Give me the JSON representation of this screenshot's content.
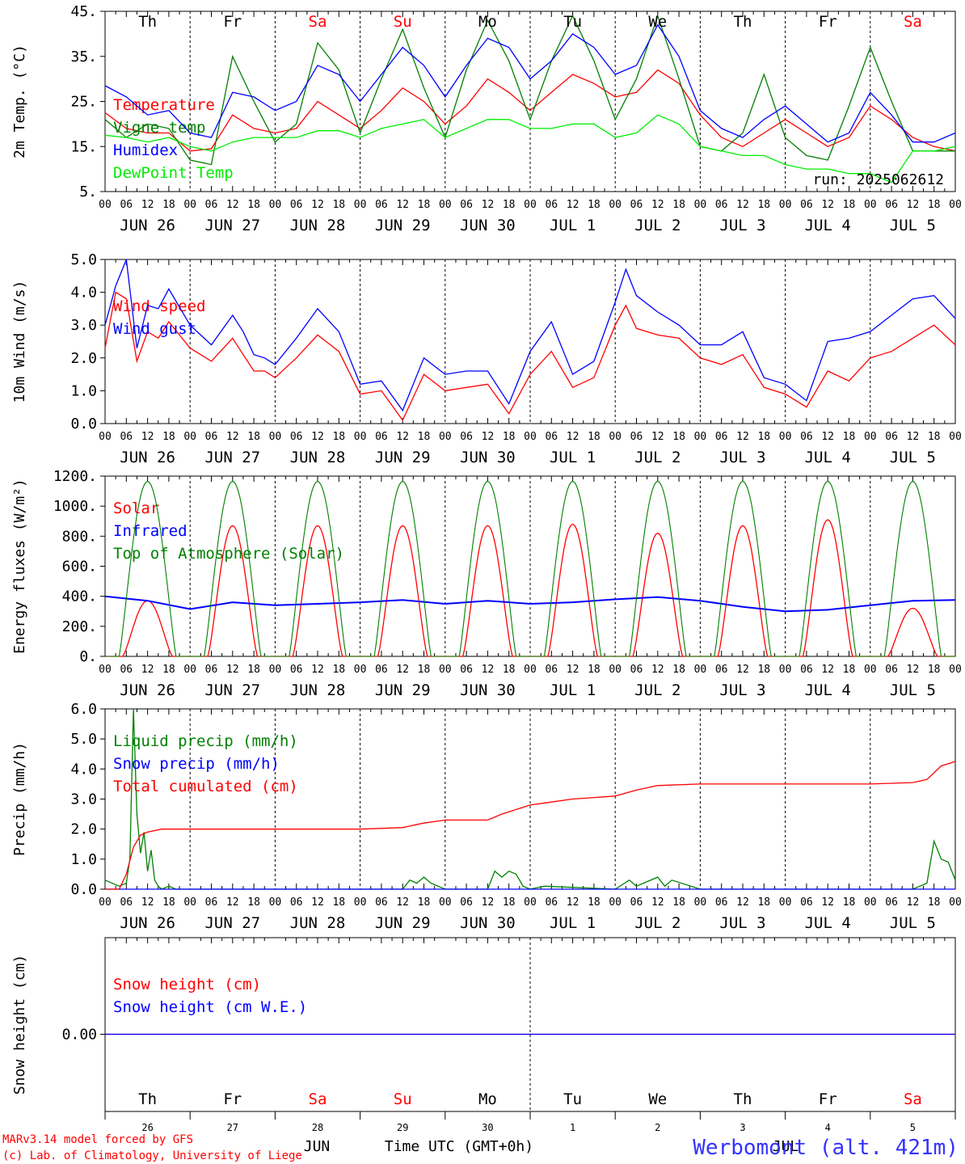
{
  "header": {
    "run_label": "run: 2025062612",
    "credit_line1": "MARv3.14 model forced by GFS",
    "credit_line2": "(c) Lab. of Climatology, University of Liege",
    "station": "Werbomont (alt. 421m)",
    "bottom_month_left": "JUN",
    "bottom_month_right": "JUL",
    "time_axis_label": "Time UTC (GMT+0h)"
  },
  "axis": {
    "hour_ticks": [
      "00",
      "06",
      "12",
      "18"
    ],
    "end_tick": "00",
    "day_labels": [
      "JUN 26",
      "JUN 27",
      "JUN 28",
      "JUN 29",
      "JUN 30",
      "JUL  1",
      "JUL  2",
      "JUL  3",
      "JUL  4",
      "JUL  5"
    ],
    "weekday_labels": [
      "Th",
      "Fr",
      "Sa",
      "Su",
      "Mo",
      "Tu",
      "We",
      "Th",
      "Fr",
      "Sa"
    ],
    "weekend_flags": [
      false,
      false,
      true,
      true,
      false,
      false,
      false,
      false,
      false,
      true
    ],
    "day_numbers": [
      "26",
      "27",
      "28",
      "29",
      "30",
      "1",
      "2",
      "3",
      "4",
      "5"
    ],
    "x_unit": "hours since 2025-06-26 00 UTC",
    "x_range": [
      0,
      240
    ]
  },
  "colors": {
    "red": "#ff0000",
    "green": "#008000",
    "blue": "#0000ff",
    "lightgreen": "#00ee00",
    "weekend": "#ff0000",
    "axis": "#000000",
    "station": "#3333ff"
  },
  "chart_data": [
    {
      "id": "temperature",
      "type": "line",
      "ylabel": "2m Temp. (°C)",
      "yticks": [
        5,
        15,
        25,
        35,
        45
      ],
      "ytick_labels": [
        "5.",
        "15.",
        "25.",
        "35.",
        "45."
      ],
      "ylim": [
        5,
        45
      ],
      "series": [
        {
          "name": "Temperature",
          "color": "red",
          "x": [
            0,
            6,
            12,
            18,
            24,
            30,
            36,
            42,
            48,
            54,
            60,
            66,
            72,
            78,
            84,
            90,
            96,
            102,
            108,
            114,
            120,
            126,
            132,
            138,
            144,
            150,
            156,
            162,
            168,
            174,
            180,
            186,
            192,
            198,
            204,
            210,
            216,
            222,
            228,
            234,
            240
          ],
          "values": [
            22.5,
            19,
            18,
            18,
            14,
            14.5,
            22,
            19,
            18,
            19,
            25,
            22,
            19,
            23,
            28,
            25,
            20,
            24,
            30,
            27,
            23,
            27,
            31,
            29,
            26,
            27,
            32,
            29,
            22,
            17,
            15,
            18,
            21,
            18,
            15,
            17,
            24,
            21,
            17,
            15,
            14
          ]
        },
        {
          "name": "Vigne temp",
          "color": "green",
          "x": [
            0,
            6,
            12,
            18,
            24,
            30,
            36,
            42,
            48,
            54,
            60,
            66,
            72,
            78,
            84,
            90,
            96,
            102,
            108,
            114,
            120,
            126,
            132,
            138,
            144,
            150,
            156,
            162,
            168,
            174,
            180,
            186,
            192,
            198,
            204,
            210,
            216,
            222,
            228,
            234,
            240
          ],
          "values": [
            21,
            17,
            20,
            19,
            12,
            11,
            35,
            25,
            16,
            20,
            38,
            32,
            18,
            30,
            41,
            28,
            17,
            32,
            43,
            34,
            21,
            34,
            44,
            34,
            21,
            30,
            44,
            30,
            15,
            14,
            18,
            31,
            17,
            13,
            12,
            24,
            37,
            25,
            14,
            14,
            14
          ]
        },
        {
          "name": "Humidex",
          "color": "blue",
          "x": [
            0,
            6,
            12,
            18,
            24,
            30,
            36,
            42,
            48,
            54,
            60,
            66,
            72,
            78,
            84,
            90,
            96,
            102,
            108,
            114,
            120,
            126,
            132,
            138,
            144,
            150,
            156,
            162,
            168,
            174,
            180,
            186,
            192,
            198,
            204,
            210,
            216,
            222,
            228,
            234,
            240
          ],
          "values": [
            28.5,
            26,
            22,
            23,
            18,
            17,
            27,
            26,
            23,
            25,
            33,
            31,
            25,
            31,
            37,
            33,
            26,
            33,
            39,
            37,
            30,
            34,
            40,
            37,
            31,
            33,
            42,
            35,
            23,
            19,
            17,
            21,
            24,
            20,
            16,
            18,
            27,
            22,
            16,
            16,
            18
          ]
        },
        {
          "name": "DewPoint Temp",
          "color": "lightgreen",
          "x": [
            0,
            6,
            12,
            18,
            24,
            30,
            36,
            42,
            48,
            54,
            60,
            66,
            72,
            78,
            84,
            90,
            96,
            102,
            108,
            114,
            120,
            126,
            132,
            138,
            144,
            150,
            156,
            162,
            168,
            174,
            180,
            186,
            192,
            198,
            204,
            210,
            216,
            222,
            228,
            234,
            240
          ],
          "values": [
            17.5,
            17,
            16,
            17,
            15,
            14,
            16,
            17,
            17,
            17,
            18.5,
            18.5,
            17,
            19,
            20,
            21,
            17,
            19,
            21,
            21,
            19,
            19,
            20,
            20,
            17,
            18,
            22,
            20,
            15,
            14,
            13,
            13,
            11,
            10,
            10,
            9,
            9,
            7,
            14,
            14,
            15
          ]
        }
      ],
      "legend_placement": "left"
    },
    {
      "id": "wind",
      "type": "line",
      "ylabel": "10m Wind (m/s)",
      "yticks": [
        0,
        1,
        2,
        3,
        4,
        5
      ],
      "ytick_labels": [
        "0.0",
        "1.0",
        "2.0",
        "3.0",
        "4.0",
        "5.0"
      ],
      "ylim": [
        0,
        5
      ],
      "dashed_gridline": 5,
      "series": [
        {
          "name": "Wind speed",
          "color": "red",
          "x": [
            0,
            3,
            6,
            9,
            12,
            15,
            18,
            24,
            30,
            36,
            39,
            42,
            45,
            48,
            54,
            60,
            66,
            72,
            78,
            84,
            90,
            96,
            102,
            108,
            114,
            120,
            126,
            132,
            138,
            144,
            147,
            150,
            156,
            162,
            168,
            174,
            180,
            186,
            192,
            198,
            204,
            210,
            216,
            222,
            228,
            234,
            240
          ],
          "values": [
            2.3,
            4.0,
            3.8,
            1.9,
            2.8,
            2.6,
            3.1,
            2.3,
            1.9,
            2.6,
            2.1,
            1.6,
            1.6,
            1.4,
            2.0,
            2.7,
            2.2,
            0.9,
            1.0,
            0.1,
            1.5,
            1.0,
            1.1,
            1.2,
            0.3,
            1.5,
            2.2,
            1.1,
            1.4,
            3.0,
            3.6,
            2.9,
            2.7,
            2.6,
            2.0,
            1.8,
            2.1,
            1.1,
            0.9,
            0.5,
            1.6,
            1.3,
            2.0,
            2.2,
            2.6,
            3.0,
            2.4
          ]
        },
        {
          "name": "Wind gust",
          "color": "blue",
          "x": [
            0,
            3,
            6,
            9,
            12,
            15,
            18,
            24,
            30,
            36,
            39,
            42,
            45,
            48,
            54,
            60,
            66,
            72,
            78,
            84,
            90,
            96,
            102,
            108,
            114,
            120,
            126,
            132,
            138,
            144,
            147,
            150,
            156,
            162,
            168,
            174,
            180,
            186,
            192,
            198,
            204,
            210,
            216,
            222,
            228,
            234,
            240
          ],
          "values": [
            3.0,
            4.2,
            5.0,
            2.3,
            3.6,
            3.5,
            4.1,
            3.0,
            2.4,
            3.3,
            2.8,
            2.1,
            2.0,
            1.8,
            2.6,
            3.5,
            2.8,
            1.2,
            1.3,
            0.4,
            2.0,
            1.5,
            1.6,
            1.6,
            0.6,
            2.2,
            3.1,
            1.5,
            1.9,
            3.7,
            4.7,
            3.9,
            3.4,
            3.0,
            2.4,
            2.4,
            2.8,
            1.4,
            1.2,
            0.7,
            2.5,
            2.6,
            2.8,
            3.3,
            3.8,
            3.9,
            3.2
          ]
        }
      ],
      "legend_placement": "left"
    },
    {
      "id": "energy",
      "type": "line",
      "ylabel": "Energy fluxes (W/m²)",
      "yticks": [
        0,
        200,
        400,
        600,
        800,
        1000,
        1200
      ],
      "ytick_labels": [
        "0.",
        "200.",
        "400.",
        "600.",
        "800.",
        "1000.",
        "1200."
      ],
      "ylim": [
        0,
        1200
      ],
      "series": [
        {
          "name": "Solar",
          "color": "red",
          "peaks": [
            370,
            870,
            870,
            870,
            870,
            880,
            820,
            870,
            910,
            320
          ]
        },
        {
          "name": "Infrared",
          "color": "blue",
          "x": [
            0,
            12,
            24,
            36,
            48,
            60,
            72,
            84,
            96,
            108,
            120,
            132,
            144,
            156,
            168,
            180,
            192,
            204,
            216,
            228,
            240
          ],
          "values": [
            400,
            370,
            315,
            360,
            340,
            350,
            360,
            375,
            350,
            370,
            350,
            360,
            380,
            395,
            370,
            330,
            300,
            310,
            340,
            370,
            375
          ]
        },
        {
          "name": "Top of Atmosphere (Solar)",
          "color": "green",
          "peak": 1165,
          "day_start_h": 4,
          "day_end_h": 20
        }
      ],
      "legend_placement": "left"
    },
    {
      "id": "precip",
      "type": "line",
      "ylabel": "Precip (mm/h)",
      "yticks": [
        0,
        1,
        2,
        3,
        4,
        5,
        6
      ],
      "ytick_labels": [
        "0.0",
        "1.0",
        "2.0",
        "3.0",
        "4.0",
        "5.0",
        "6.0"
      ],
      "ylim": [
        0,
        6
      ],
      "series": [
        {
          "name": "Liquid precip (mm/h)",
          "color": "green",
          "x": [
            0,
            4,
            6,
            7,
            8,
            9,
            10,
            11,
            12,
            13,
            14,
            15,
            16,
            18,
            20,
            24,
            84,
            86,
            88,
            90,
            92,
            96,
            108,
            110,
            112,
            114,
            116,
            118,
            120,
            124,
            144,
            148,
            150,
            152,
            156,
            158,
            160,
            168,
            180,
            228,
            232,
            234,
            236,
            238,
            240
          ],
          "values": [
            0.3,
            0.1,
            0.2,
            1.0,
            6.0,
            2.5,
            1.2,
            1.9,
            0.6,
            1.3,
            0.3,
            0.1,
            0.0,
            0.1,
            0.0,
            0.0,
            0.0,
            0.3,
            0.2,
            0.4,
            0.2,
            0.0,
            0.0,
            0.6,
            0.4,
            0.6,
            0.5,
            0.1,
            0.0,
            0.1,
            0.0,
            0.3,
            0.1,
            0.2,
            0.4,
            0.1,
            0.3,
            0.0,
            0.0,
            0.0,
            0.2,
            1.6,
            1.0,
            0.9,
            0.3
          ]
        },
        {
          "name": "Snow precip (mm/h)",
          "color": "blue",
          "x": [
            0,
            240
          ],
          "values": [
            0,
            0
          ]
        },
        {
          "name": "Total cumulated (cm)",
          "color": "red",
          "x": [
            0,
            4,
            6,
            8,
            10,
            12,
            16,
            24,
            48,
            72,
            84,
            90,
            96,
            108,
            112,
            120,
            126,
            132,
            144,
            150,
            156,
            168,
            180,
            192,
            204,
            216,
            228,
            232,
            236,
            240
          ],
          "values": [
            0.0,
            0.0,
            0.5,
            1.4,
            1.8,
            1.9,
            2.0,
            2.0,
            2.0,
            2.0,
            2.05,
            2.2,
            2.3,
            2.3,
            2.5,
            2.8,
            2.9,
            3.0,
            3.1,
            3.3,
            3.45,
            3.5,
            3.5,
            3.5,
            3.5,
            3.5,
            3.55,
            3.65,
            4.1,
            4.25
          ]
        }
      ],
      "legend_placement": "left"
    },
    {
      "id": "snow",
      "type": "line",
      "ylabel": "Snow height (cm)",
      "ytick_labels": [
        "0.00"
      ],
      "series": [
        {
          "name": "Snow height (cm)",
          "color": "red",
          "x": [
            0,
            240
          ],
          "values": [
            0,
            0
          ]
        },
        {
          "name": "Snow height (cm W.E.)",
          "color": "blue",
          "x": [
            0,
            240
          ],
          "values": [
            0,
            0
          ]
        }
      ],
      "legend_placement": "left"
    }
  ]
}
